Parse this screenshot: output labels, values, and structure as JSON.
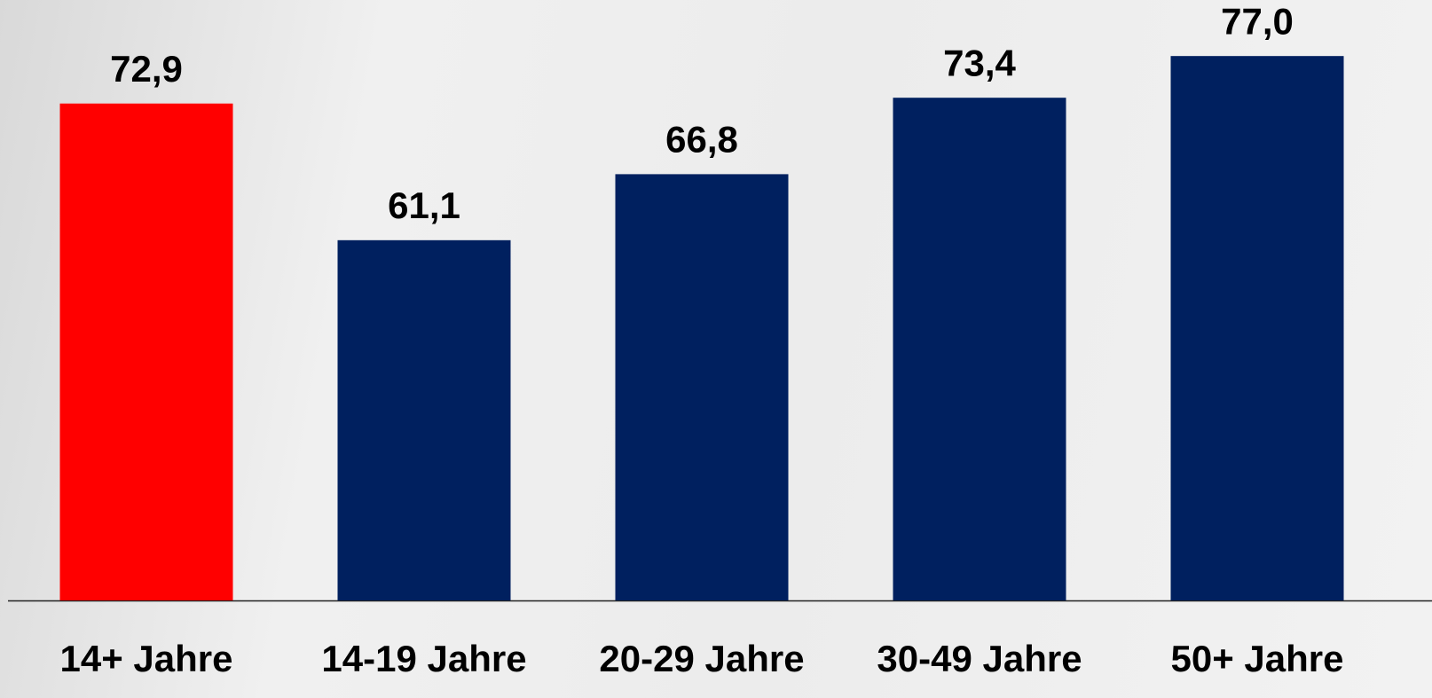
{
  "chart_data": {
    "type": "bar",
    "categories": [
      "14+ Jahre",
      "14-19 Jahre",
      "20-29 Jahre",
      "30-49 Jahre",
      "50+ Jahre"
    ],
    "values": [
      72.9,
      61.1,
      66.8,
      73.4,
      77.0
    ],
    "value_labels": [
      "72,9",
      "61,1",
      "66,8",
      "73,4",
      "77,0"
    ],
    "colors": [
      "#ff0000",
      "#00205f",
      "#00205f",
      "#00205f",
      "#00205f"
    ],
    "ylim": [
      30,
      80
    ]
  }
}
